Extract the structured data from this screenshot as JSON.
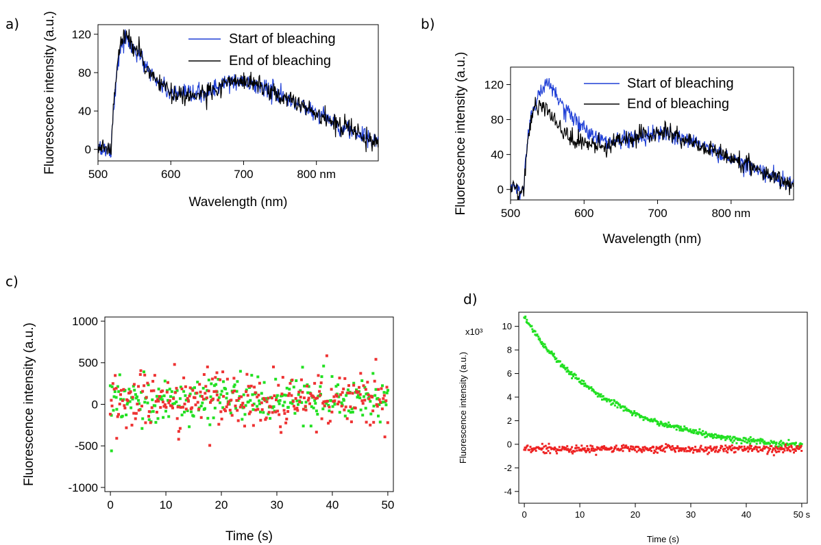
{
  "chart_data": [
    {
      "panel": "a)",
      "type": "line",
      "xlabel": "Wavelength (nm)",
      "ylabel": "Fluorescence intensity (a.u.)",
      "xlim": [
        500,
        885
      ],
      "ylim": [
        -12,
        130
      ],
      "xticks": [
        {
          "v": 500,
          "t": "500"
        },
        {
          "v": 600,
          "t": "600"
        },
        {
          "v": 700,
          "t": "700"
        },
        {
          "v": 800,
          "t": "800 nm"
        }
      ],
      "yticks": [
        {
          "v": 0,
          "t": "0"
        },
        {
          "v": 40,
          "t": "40"
        },
        {
          "v": 80,
          "t": "80"
        },
        {
          "v": 120,
          "t": "120"
        }
      ],
      "legend": "top-right",
      "series": [
        {
          "name": "Start of bleaching",
          "color": "#1f3fd6",
          "noise": 5,
          "x": [
            500,
            518,
            523,
            530,
            537,
            545,
            555,
            565,
            580,
            600,
            620,
            640,
            660,
            680,
            700,
            720,
            740,
            760,
            780,
            800,
            820,
            840,
            860,
            885
          ],
          "y": [
            0,
            0,
            60,
            105,
            115,
            110,
            98,
            88,
            72,
            58,
            55,
            57,
            63,
            70,
            70,
            66,
            60,
            52,
            46,
            38,
            30,
            22,
            15,
            5
          ]
        },
        {
          "name": "End of bleaching",
          "color": "#000000",
          "noise": 5,
          "x": [
            500,
            518,
            523,
            530,
            537,
            545,
            555,
            565,
            580,
            600,
            620,
            640,
            660,
            680,
            700,
            720,
            740,
            760,
            780,
            800,
            820,
            840,
            860,
            885
          ],
          "y": [
            0,
            0,
            60,
            108,
            117,
            112,
            100,
            88,
            72,
            58,
            55,
            57,
            63,
            70,
            70,
            66,
            60,
            52,
            46,
            38,
            30,
            22,
            15,
            5
          ]
        }
      ]
    },
    {
      "panel": "b)",
      "type": "line",
      "xlabel": "Wavelength (nm)",
      "ylabel": "Fluorescence intensity (a.u.)",
      "xlim": [
        500,
        885
      ],
      "ylim": [
        -12,
        140
      ],
      "xticks": [
        {
          "v": 500,
          "t": "500"
        },
        {
          "v": 600,
          "t": "600"
        },
        {
          "v": 700,
          "t": "700"
        },
        {
          "v": 800,
          "t": "800 nm"
        }
      ],
      "yticks": [
        {
          "v": 0,
          "t": "0"
        },
        {
          "v": 40,
          "t": "40"
        },
        {
          "v": 80,
          "t": "80"
        },
        {
          "v": 120,
          "t": "120"
        }
      ],
      "legend": "top-right",
      "series": [
        {
          "name": "Start of bleaching",
          "color": "#1f3fd6",
          "noise": 5,
          "x": [
            500,
            518,
            523,
            530,
            540,
            550,
            560,
            575,
            590,
            610,
            630,
            650,
            670,
            690,
            710,
            730,
            750,
            770,
            790,
            810,
            830,
            850,
            870,
            885
          ],
          "y": [
            0,
            0,
            55,
            95,
            110,
            125,
            110,
            88,
            78,
            62,
            55,
            57,
            60,
            63,
            64,
            60,
            54,
            46,
            40,
            32,
            25,
            18,
            10,
            5
          ]
        },
        {
          "name": "End of bleaching",
          "color": "#000000",
          "noise": 5,
          "x": [
            500,
            518,
            523,
            530,
            540,
            550,
            560,
            575,
            590,
            610,
            630,
            650,
            670,
            690,
            710,
            730,
            750,
            770,
            790,
            810,
            830,
            850,
            870,
            885
          ],
          "y": [
            0,
            0,
            55,
            90,
            95,
            92,
            80,
            62,
            55,
            53,
            50,
            55,
            60,
            63,
            64,
            60,
            54,
            46,
            40,
            32,
            25,
            18,
            10,
            5
          ]
        }
      ]
    },
    {
      "panel": "c)",
      "type": "scatter",
      "xlabel": "Time (s)",
      "ylabel": "Fluorescence intensity (a.u.)",
      "xlim": [
        -1,
        51
      ],
      "ylim": [
        -1050,
        1050
      ],
      "xticks": [
        {
          "v": 0,
          "t": "0"
        },
        {
          "v": 10,
          "t": "10"
        },
        {
          "v": 20,
          "t": "20"
        },
        {
          "v": 30,
          "t": "30"
        },
        {
          "v": 40,
          "t": "40"
        },
        {
          "v": 50,
          "t": "50"
        }
      ],
      "yticks": [
        {
          "v": -1000,
          "t": "-1000"
        },
        {
          "v": -500,
          "t": "-500"
        },
        {
          "v": 0,
          "t": "0"
        },
        {
          "v": 500,
          "t": "500"
        },
        {
          "v": 1000,
          "t": "1000"
        }
      ],
      "series": [
        {
          "color": "#22e022",
          "n": 300,
          "x_range": [
            0,
            50
          ],
          "y_center": 50,
          "y_spread": 140,
          "outliers": [
            [
              0.2,
              -560
            ]
          ]
        },
        {
          "color": "#ee3333",
          "n": 300,
          "x_range": [
            0,
            50
          ],
          "y_center": 40,
          "y_spread": 170,
          "outliers": [
            [
              12.3,
              -420
            ],
            [
              19.2,
              380
            ]
          ]
        }
      ]
    },
    {
      "panel": "d)",
      "type": "scatter",
      "xlabel": "Time (s)",
      "ylabel": "Fluorescence intensity (a.u.)",
      "y_multiplier": "x10³",
      "xlim": [
        -1,
        51
      ],
      "ylim": [
        -5000,
        11200
      ],
      "xticks": [
        {
          "v": 0,
          "t": "0"
        },
        {
          "v": 10,
          "t": "10"
        },
        {
          "v": 20,
          "t": "20"
        },
        {
          "v": 30,
          "t": "30"
        },
        {
          "v": 40,
          "t": "40"
        },
        {
          "v": 50,
          "t": "50 s"
        }
      ],
      "yticks": [
        {
          "v": -4000,
          "t": "-4"
        },
        {
          "v": -2000,
          "t": "-2"
        },
        {
          "v": 0,
          "t": "0"
        },
        {
          "v": 2000,
          "t": "2"
        },
        {
          "v": 4000,
          "t": "4"
        },
        {
          "v": 6000,
          "t": "6"
        },
        {
          "v": 8000,
          "t": "8"
        },
        {
          "v": 10000,
          "t": "10"
        }
      ],
      "series": [
        {
          "color": "#22e022",
          "n": 420,
          "x_range": [
            0,
            50
          ],
          "model": "decay",
          "A": 11200,
          "tau": 15.5,
          "C": -500,
          "y_spread": 120
        },
        {
          "color": "#ee2222",
          "n": 420,
          "x_range": [
            0,
            50
          ],
          "model": "flat",
          "y_center": -400,
          "y_spread": 160
        }
      ]
    }
  ]
}
